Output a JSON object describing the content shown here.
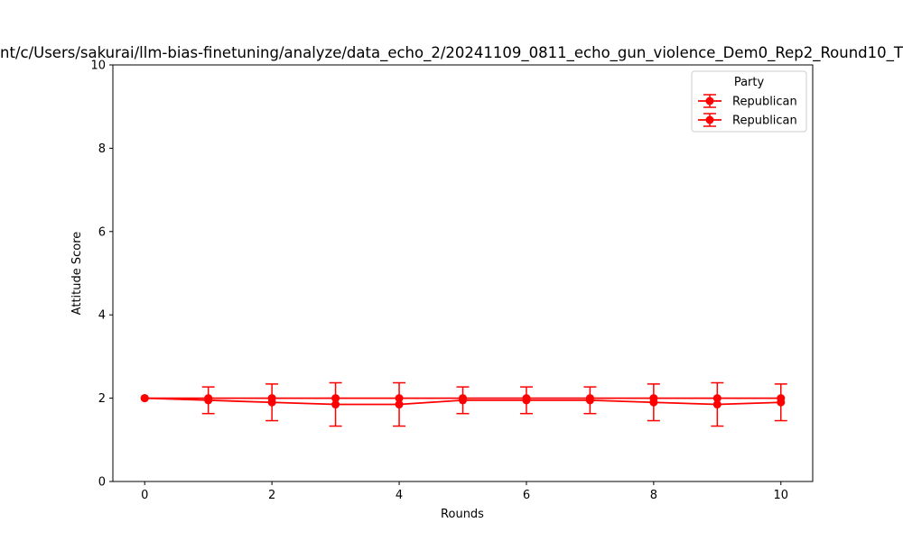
{
  "chart_data": {
    "type": "line",
    "title": "nt/c/Users/sakurai/llm-bias-finetuning/analyze/data_echo_2/20241109_0811_echo_gun_violence_Dem0_Rep2_Round10_T",
    "xlabel": "Rounds",
    "ylabel": "Attitude Score",
    "xlim": [
      -0.5,
      10.5
    ],
    "ylim": [
      0,
      10
    ],
    "xticks": [
      "0",
      "2",
      "4",
      "6",
      "8",
      "10"
    ],
    "yticks": [
      "0",
      "2",
      "4",
      "6",
      "8",
      "10"
    ],
    "grid": false,
    "legend": {
      "title": "Party",
      "placement": "top-right"
    },
    "series": [
      {
        "name": "Republican",
        "color": "#ff0000",
        "x": [
          0,
          1,
          2,
          3,
          4,
          5,
          6,
          7,
          8,
          9,
          10
        ],
        "y": [
          2.0,
          1.95,
          1.9,
          1.85,
          1.85,
          1.95,
          1.95,
          1.95,
          1.9,
          1.85,
          1.9
        ],
        "err": [
          0.0,
          0.32,
          0.44,
          0.52,
          0.52,
          0.32,
          0.32,
          0.32,
          0.44,
          0.52,
          0.44
        ]
      },
      {
        "name": "Republican",
        "color": "#ff0000",
        "x": [
          0,
          1,
          2,
          3,
          4,
          5,
          6,
          7,
          8,
          9,
          10
        ],
        "y": [
          2.0,
          2.0,
          2.0,
          2.0,
          2.0,
          2.0,
          2.0,
          2.0,
          2.0,
          2.0,
          2.0
        ],
        "err": [
          0,
          0,
          0,
          0,
          0,
          0,
          0,
          0,
          0,
          0,
          0
        ]
      }
    ]
  }
}
